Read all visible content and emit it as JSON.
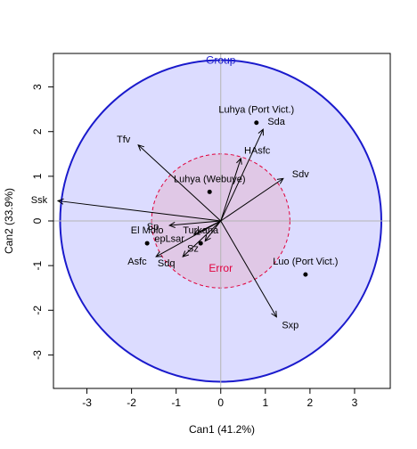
{
  "chart_data": {
    "type": "scatter",
    "title": "",
    "xlabel": "Can1 (41.2%)",
    "ylabel": "Can2 (33.9%)",
    "xlim": [
      -3.75,
      3.8
    ],
    "ylim": [
      -3.75,
      3.75
    ],
    "x_ticks": [
      -3,
      -2,
      -1,
      0,
      1,
      2,
      3
    ],
    "y_ticks": [
      -3,
      -2,
      -1,
      0,
      1,
      2,
      3
    ],
    "reference_lines": {
      "x": 0,
      "y": 0
    },
    "ellipses": [
      {
        "label": "Group",
        "center": [
          0,
          0
        ],
        "radius_x": 3.6,
        "radius_y": 3.6,
        "fill": "#dcdcff",
        "stroke": "#1a1acc",
        "style": "solid"
      },
      {
        "label": "Error",
        "center": [
          0,
          0
        ],
        "radius_x": 1.55,
        "radius_y": 1.5,
        "fill": "#e0c8e6",
        "stroke": "#e0003c",
        "style": "dashed"
      }
    ],
    "points": [
      {
        "name": "Luhya (Port Vict.)",
        "x": 0.8,
        "y": 2.2
      },
      {
        "name": "Luhya (Webuye)",
        "x": -0.25,
        "y": 0.65
      },
      {
        "name": "El Molo",
        "x": -1.65,
        "y": -0.5
      },
      {
        "name": "Turkana",
        "x": -0.45,
        "y": -0.5
      },
      {
        "name": "Luo (Port Vict.)",
        "x": 1.9,
        "y": -1.2
      }
    ],
    "vectors": [
      {
        "name": "Ssk",
        "x": -3.65,
        "y": 0.45
      },
      {
        "name": "Tfv",
        "x": -1.85,
        "y": 1.7
      },
      {
        "name": "Sda",
        "x": 0.95,
        "y": 2.05
      },
      {
        "name": "HAsfc",
        "x": 0.45,
        "y": 1.4
      },
      {
        "name": "Sdv",
        "x": 1.4,
        "y": 0.95
      },
      {
        "name": "Sp",
        "x": -1.15,
        "y": -0.1
      },
      {
        "name": "epLsar",
        "x": -0.6,
        "y": -0.3
      },
      {
        "name": "Sz",
        "x": -0.35,
        "y": -0.45
      },
      {
        "name": "Sdq",
        "x": -0.85,
        "y": -0.8
      },
      {
        "name": "Asfc",
        "x": -1.45,
        "y": -0.8
      },
      {
        "name": "Sxp",
        "x": 1.25,
        "y": -2.15
      }
    ]
  }
}
